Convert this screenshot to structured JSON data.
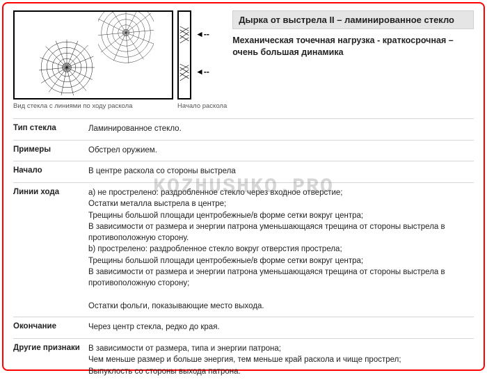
{
  "header": {
    "title": "Дырка от выстрела II – ламинированное стекло",
    "subtitle": "Механическая точечная нагрузка - краткосрочная – очень большая динамика"
  },
  "diagram": {
    "caption_main": "Вид стекла с линиями по ходу раскола",
    "caption_side": "Начало раскола",
    "border_color": "#000000",
    "frame_color": "#ff0000"
  },
  "watermark": "KOZHUSHKO.PRO",
  "rows": [
    {
      "label": "Тип стекла",
      "lines": [
        "Ламинированное стекло."
      ]
    },
    {
      "label": "Примеры",
      "lines": [
        "Обстрел оружием."
      ]
    },
    {
      "label": "Начало",
      "lines": [
        "В центре раскола со стороны выстрела"
      ]
    },
    {
      "label": "Линии хода",
      "lines": [
        "a) не прострелено: раздробленное стекло через входное отверстие;",
        "Остатки металла выстрела в центре;",
        "Трещины большой площади центробежные/в форме сетки вокруг центра;",
        "В зависимости от размера и энергии патрона уменьшающаяся трещина от стороны выстрела в противоположную сторону.",
        "b) прострелено: раздробленное стекло вокруг отверстия прострела;",
        "Трещины большой площади центробежные/в форме сетки вокруг центра;",
        "В зависимости от размера и энергии патрона уменьшающаяся трещина от стороны выстрела в противоположную сторону;",
        "",
        "Остатки фольги, показывающие место выхода."
      ]
    },
    {
      "label": "Окончание",
      "lines": [
        "Через центр стекла, редко до края."
      ]
    },
    {
      "label": "Другие признаки",
      "lines": [
        "В зависимости от размера, типа и энергии патрона;",
        "Чем меньше размер и больше энергия, тем меньше край раскола и чище прострел;",
        "Выпуклость со стороны выхода патрона."
      ]
    }
  ],
  "colors": {
    "titlebar_bg": "#e5e5e5",
    "titlebar_border": "#cfcfcf",
    "row_divider": "#d5d5d5",
    "text": "#222222",
    "caption_text": "#555555"
  }
}
